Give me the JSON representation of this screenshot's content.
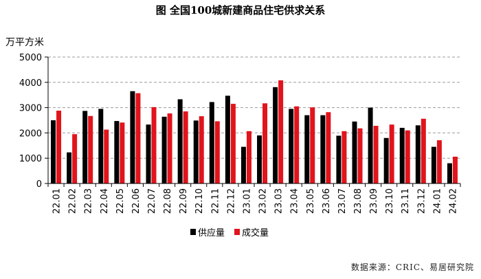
{
  "chart_data": {
    "type": "bar",
    "title": "图 全国100城新建商品住宅供求关系",
    "ylabel": "万平方米",
    "xlabel": "",
    "ylim": [
      0,
      5000
    ],
    "yticks": [
      0,
      1000,
      2000,
      3000,
      4000,
      5000
    ],
    "grid": true,
    "legend_position": "bottom",
    "categories": [
      "22.01",
      "22.02",
      "22.03",
      "22.04",
      "22.05",
      "22.06",
      "22.07",
      "22.08",
      "22.09",
      "22.10",
      "22.11",
      "22.12",
      "23.01",
      "23.02",
      "23.03",
      "23.04",
      "23.05",
      "23.06",
      "23.07",
      "23.08",
      "23.09",
      "23.10",
      "23.11",
      "23.12",
      "24.01",
      "24.02"
    ],
    "series": [
      {
        "name": "供应量",
        "color": "#000000",
        "values": [
          2500,
          1230,
          2870,
          2950,
          2470,
          3650,
          2330,
          2640,
          3330,
          2490,
          3220,
          3470,
          1450,
          1900,
          3810,
          2950,
          2700,
          2700,
          1890,
          2450,
          3000,
          1800,
          2200,
          2300,
          1450,
          800
        ]
      },
      {
        "name": "成交量",
        "color": "#e1141c",
        "values": [
          2880,
          1950,
          2670,
          2130,
          2410,
          3570,
          3020,
          2770,
          2850,
          2660,
          2460,
          3150,
          2070,
          3170,
          4080,
          3050,
          3010,
          2820,
          2070,
          2180,
          2280,
          2330,
          2100,
          2560,
          1710,
          1060
        ]
      }
    ]
  },
  "source": "数据来源：CRIC、易居研究院"
}
